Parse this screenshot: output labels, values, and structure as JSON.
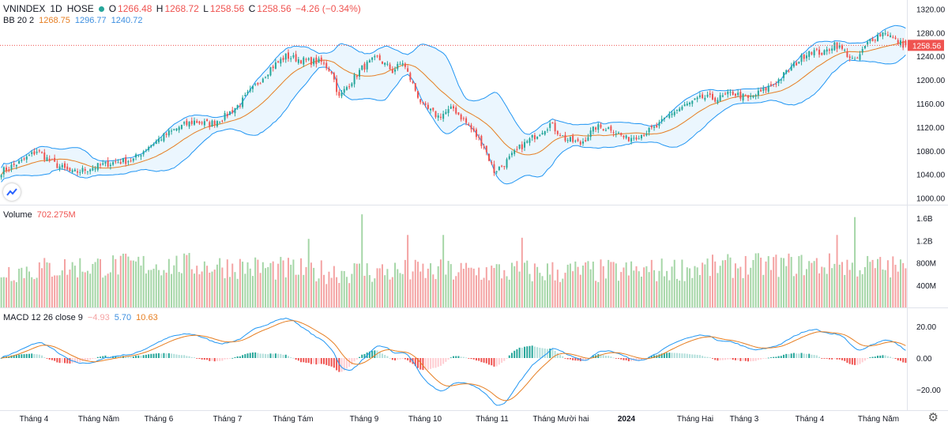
{
  "header": {
    "symbol": "VNINDEX",
    "interval": "1D",
    "exchange": "HOSE",
    "o_label": "O",
    "open": "1266.48",
    "h_label": "H",
    "high": "1268.72",
    "l_label": "L",
    "low": "1258.56",
    "c_label": "C",
    "close": "1258.56",
    "change": "−4.26 (−0.34%)"
  },
  "bb_legend": {
    "name": "BB 20 2",
    "basis": "1268.75",
    "upper": "1296.77",
    "lower": "1240.72"
  },
  "volume_legend": {
    "name": "Volume",
    "value": "702.275M"
  },
  "macd_legend": {
    "name": "MACD 12 26 close 9",
    "hist": "−4.93",
    "macd": "5.70",
    "signal": "10.63"
  },
  "colors": {
    "up": "#26a69a",
    "down": "#ef5350",
    "basis": "#e67e22",
    "band": "#2196f3",
    "fill": "#e3f2fd"
  },
  "chart_data": [
    {
      "type": "candlestick",
      "title": "VNINDEX 1D HOSE",
      "ylim": [
        990,
        1330
      ],
      "yticks": [
        1000,
        1040,
        1080,
        1120,
        1160,
        1200,
        1240,
        1280,
        1320
      ],
      "ytick_labels": [
        "1000.00",
        "1040.00",
        "1080.00",
        "1120.00",
        "1160.00",
        "1200.00",
        "1240.00",
        "1280.00",
        "1320.00"
      ],
      "last_price_label": "1258.56",
      "last_price": 1258.56,
      "x_labels": [
        "Tháng 4",
        "Tháng Năm",
        "Tháng 6",
        "Tháng 7",
        "Tháng Tám",
        "Tháng 9",
        "Tháng 10",
        "Tháng 11",
        "Tháng Mười hai",
        "2024",
        "Tháng Hai",
        "Tháng 3",
        "Tháng 4",
        "Tháng Năm"
      ],
      "close_path": [
        [
          0,
          1045
        ],
        [
          8,
          1062
        ],
        [
          14,
          1080
        ],
        [
          20,
          1060
        ],
        [
          28,
          1042
        ],
        [
          36,
          1052
        ],
        [
          44,
          1060
        ],
        [
          52,
          1065
        ],
        [
          58,
          1088
        ],
        [
          64,
          1105
        ],
        [
          70,
          1120
        ],
        [
          76,
          1130
        ],
        [
          82,
          1125
        ],
        [
          88,
          1138
        ],
        [
          94,
          1160
        ],
        [
          100,
          1190
        ],
        [
          106,
          1220
        ],
        [
          112,
          1240
        ],
        [
          120,
          1232
        ],
        [
          126,
          1230
        ],
        [
          130,
          1215
        ],
        [
          133,
          1170
        ],
        [
          136,
          1188
        ],
        [
          142,
          1220
        ],
        [
          148,
          1238
        ],
        [
          154,
          1215
        ],
        [
          158,
          1230
        ],
        [
          162,
          1192
        ],
        [
          166,
          1155
        ],
        [
          172,
          1138
        ],
        [
          178,
          1152
        ],
        [
          184,
          1122
        ],
        [
          190,
          1088
        ],
        [
          194,
          1045
        ],
        [
          198,
          1058
        ],
        [
          204,
          1085
        ],
        [
          210,
          1105
        ],
        [
          216,
          1125
        ],
        [
          222,
          1100
        ],
        [
          228,
          1092
        ],
        [
          234,
          1120
        ],
        [
          240,
          1118
        ],
        [
          246,
          1100
        ],
        [
          252,
          1108
        ],
        [
          258,
          1120
        ],
        [
          264,
          1145
        ],
        [
          270,
          1158
        ],
        [
          276,
          1170
        ],
        [
          282,
          1168
        ],
        [
          288,
          1178
        ],
        [
          294,
          1168
        ],
        [
          300,
          1182
        ],
        [
          306,
          1200
        ],
        [
          312,
          1225
        ],
        [
          318,
          1250
        ],
        [
          324,
          1245
        ],
        [
          328,
          1262
        ],
        [
          332,
          1248
        ],
        [
          336,
          1230
        ],
        [
          342,
          1268
        ],
        [
          348,
          1282
        ],
        [
          352,
          1266
        ],
        [
          356,
          1258
        ]
      ],
      "bollinger": {
        "period": 20,
        "mult": 2
      }
    },
    {
      "type": "bar",
      "title": "Volume",
      "ylim": [
        0,
        1.8
      ],
      "yticks": [
        0.4,
        0.8,
        1.2,
        1.6
      ],
      "ytick_labels": [
        "400M",
        "800M",
        "1.2B",
        "1.6B"
      ],
      "unit": "billions of shares",
      "spikes": [
        [
          142,
          1.67
        ],
        [
          336,
          1.62
        ],
        [
          329,
          1.3
        ],
        [
          174,
          1.3
        ],
        [
          205,
          1.25
        ],
        [
          160,
          1.3
        ],
        [
          121,
          1.23
        ]
      ],
      "last_value": 0.702
    },
    {
      "type": "line",
      "title": "MACD 12 26 close 9",
      "ylim": [
        -32,
        30
      ],
      "yticks": [
        -20,
        0,
        20
      ],
      "ytick_labels": [
        "−20.00",
        "0.00",
        "20.00"
      ],
      "series": [
        "MACD",
        "Signal",
        "Histogram"
      ]
    }
  ]
}
